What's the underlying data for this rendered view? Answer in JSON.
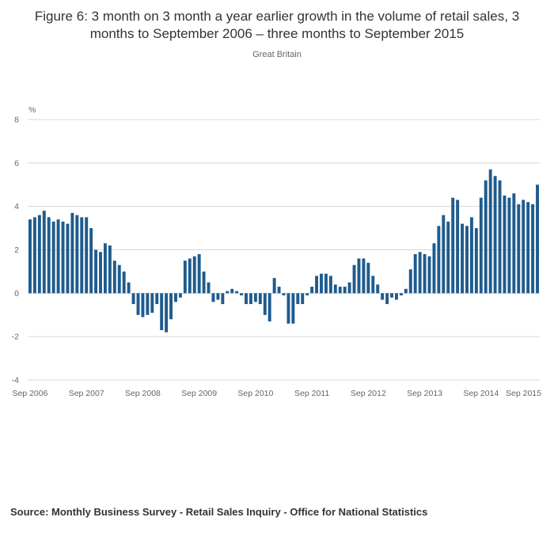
{
  "header": {
    "title": "Figure 6: 3 month on 3 month a year earlier growth in the volume of retail sales, 3 months to September 2006 – three months to September 2015",
    "subtitle": "Great Britain"
  },
  "footer": {
    "source": "Source: Monthly Business Survey - Retail Sales Inquiry - Office for National Statistics"
  },
  "chart_data": {
    "type": "bar",
    "title": "Figure 6: 3 month on 3 month a year earlier growth in the volume of retail sales, 3 months to September 2006 – three months to September 2015",
    "subtitle": "Great Britain",
    "unit_label": "%",
    "x_frequency": "monthly",
    "x_start": "Sep 2006",
    "x_end": "Sep 2015",
    "ylim": [
      -4,
      8
    ],
    "yticks": [
      8,
      6,
      4,
      2,
      0,
      -2,
      -4
    ],
    "xtick_labels": [
      "Sep 2006",
      "Sep 2007",
      "Sep 2008",
      "Sep 2009",
      "Sep 2010",
      "Sep 2011",
      "Sep 2012",
      "Sep 2013",
      "Sep 2014",
      "Sep 2015"
    ],
    "xtick_indices": [
      0,
      12,
      24,
      36,
      48,
      60,
      72,
      84,
      96,
      108
    ],
    "bar_color": "#1f5b8e",
    "grid_color": "#d8d8d8",
    "axis_text_color": "#666666",
    "grid": true,
    "legend": "none",
    "values": [
      3.4,
      3.5,
      3.6,
      3.8,
      3.5,
      3.3,
      3.4,
      3.3,
      3.2,
      3.7,
      3.6,
      3.5,
      3.5,
      3.0,
      2.0,
      1.9,
      2.3,
      2.2,
      1.5,
      1.3,
      1.0,
      0.5,
      -0.5,
      -1.0,
      -1.1,
      -1.0,
      -0.9,
      -0.5,
      -1.7,
      -1.8,
      -1.2,
      -0.4,
      -0.2,
      1.5,
      1.6,
      1.7,
      1.8,
      1.0,
      0.5,
      -0.4,
      -0.3,
      -0.5,
      0.1,
      0.2,
      0.1,
      -0.1,
      -0.5,
      -0.5,
      -0.4,
      -0.5,
      -1.0,
      -1.3,
      0.7,
      0.3,
      -0.1,
      -1.4,
      -1.4,
      -0.5,
      -0.5,
      -0.1,
      0.3,
      0.8,
      0.9,
      0.9,
      0.8,
      0.4,
      0.3,
      0.3,
      0.5,
      1.3,
      1.6,
      1.6,
      1.4,
      0.8,
      0.4,
      -0.3,
      -0.5,
      -0.2,
      -0.3,
      -0.1,
      0.2,
      1.1,
      1.8,
      1.9,
      1.8,
      1.7,
      2.3,
      3.1,
      3.6,
      3.3,
      4.4,
      4.3,
      3.2,
      3.1,
      3.5,
      3.0,
      4.4,
      5.2,
      5.7,
      5.4,
      5.2,
      4.5,
      4.4,
      4.6,
      4.1,
      4.3,
      4.2,
      4.1,
      5.0
    ]
  }
}
